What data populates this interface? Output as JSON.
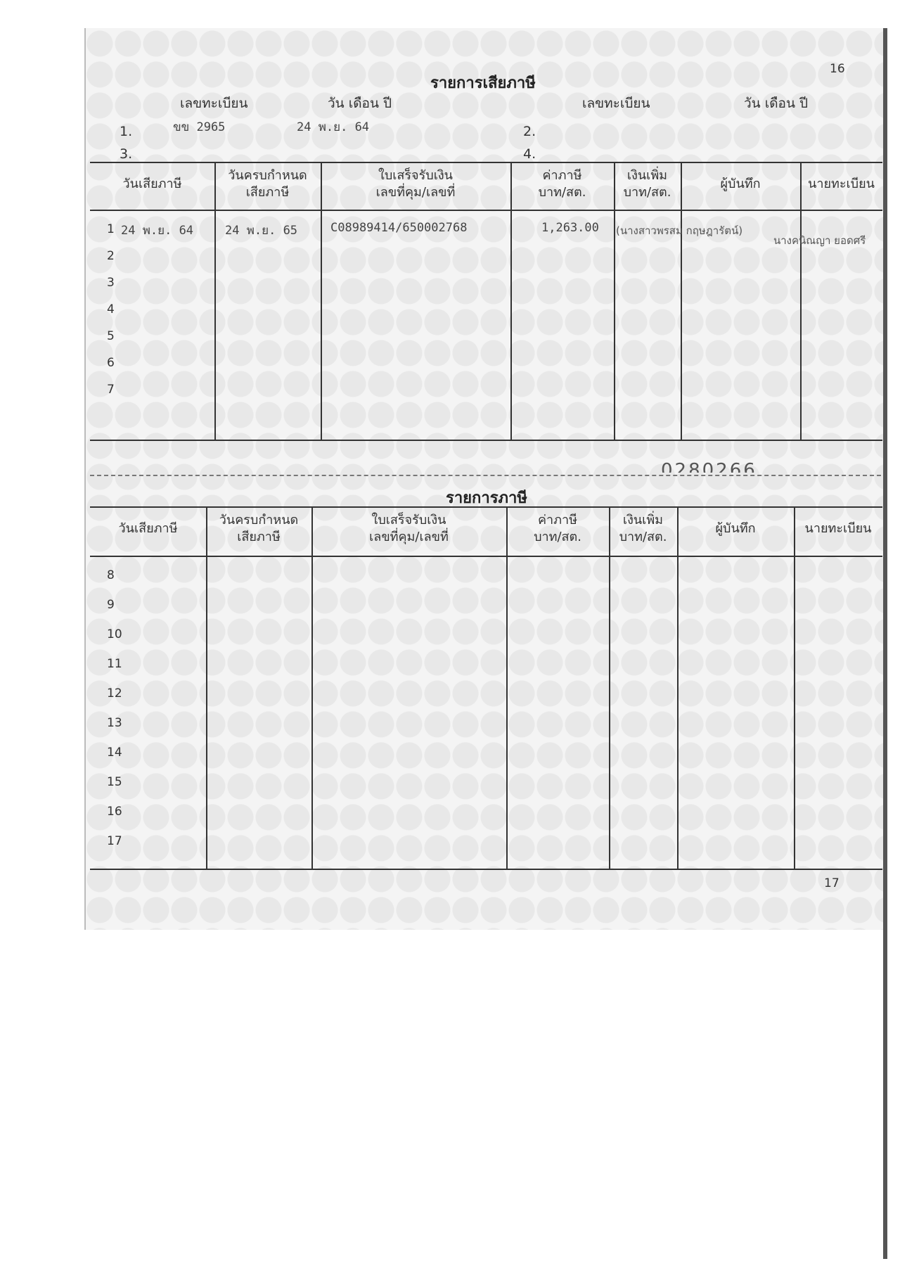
{
  "page_numbers": {
    "top": "16",
    "bottom": "17"
  },
  "section1": {
    "title": "รายการเสียภาษี",
    "reg_label": "เลขทะเบียน",
    "date_label": "วัน เดือน ปี",
    "entries": [
      {
        "index": "1.",
        "reg": "ขข 2965",
        "date": "24 พ.ย. 64"
      },
      {
        "index": "2.",
        "reg": "",
        "date": ""
      },
      {
        "index": "3.",
        "reg": "",
        "date": ""
      },
      {
        "index": "4.",
        "reg": "",
        "date": ""
      }
    ],
    "headers": [
      "วันเสียภาษี",
      "วันครบกำหนด\nเสียภาษี",
      "ใบเสร็จรับเงิน\nเลขที่คุม/เลขที่",
      "ค่าภาษี\nบาท/สต.",
      "เงินเพิ่ม\nบาท/สต.",
      "ผู้บันทึก",
      "นายทะเบียน"
    ],
    "row_numbers": [
      "1",
      "2",
      "3",
      "4",
      "5",
      "6",
      "7"
    ],
    "rows": [
      {
        "paid_date": "24 พ.ย. 64",
        "due_date": "24 พ.ย. 65",
        "receipt": "C08989414/650002768",
        "tax": "1,263.00",
        "recorder": "(นางสาวพรสม กฤษฎารัตน์)",
        "registrar": "นางคนิณญา ยอดศรี"
      }
    ]
  },
  "serial_number": "0280266",
  "section2": {
    "title": "รายการภาษี",
    "headers": [
      "วันเสียภาษี",
      "วันครบกำหนด\nเสียภาษี",
      "ใบเสร็จรับเงิน\nเลขที่คุม/เลขที่",
      "ค่าภาษี\nบาท/สต.",
      "เงินเพิ่ม\nบาท/สต.",
      "ผู้บันทึก",
      "นายทะเบียน"
    ],
    "row_numbers": [
      "8",
      "9",
      "10",
      "11",
      "12",
      "13",
      "14",
      "15",
      "16",
      "17"
    ]
  }
}
